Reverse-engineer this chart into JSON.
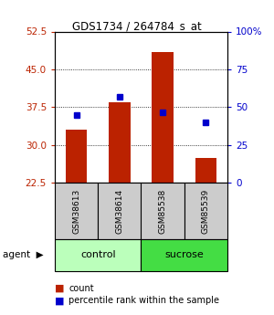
{
  "title": "GDS1734 / 264784_s_at",
  "samples": [
    "GSM38613",
    "GSM38614",
    "GSM85538",
    "GSM85539"
  ],
  "bar_values": [
    33.0,
    38.5,
    48.5,
    27.5
  ],
  "dot_values": [
    36.0,
    39.5,
    36.5,
    34.5
  ],
  "bar_color": "#bb2200",
  "dot_color": "#0000cc",
  "ylim_left": [
    22.5,
    52.5
  ],
  "yticks_left": [
    22.5,
    30.0,
    37.5,
    45.0,
    52.5
  ],
  "yticks_right": [
    0,
    25,
    50,
    75,
    100
  ],
  "yticklabels_right": [
    "0",
    "25",
    "50",
    "75",
    "100%"
  ],
  "ybase": 22.5,
  "control_color": "#bbffbb",
  "sucrose_color": "#44dd44",
  "bar_width": 0.5,
  "legend_count_label": "count",
  "legend_pct_label": "percentile rank within the sample"
}
